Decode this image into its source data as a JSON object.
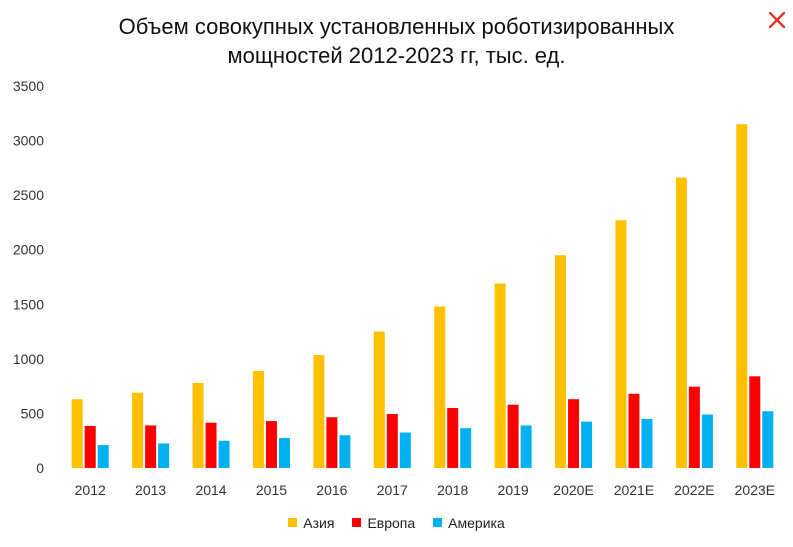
{
  "chart_data": {
    "type": "bar",
    "title_lines": [
      "Объем совокупных установленных роботизированных",
      "мощностей 2012-2023 гг, тыс. ед."
    ],
    "categories": [
      "2012",
      "2013",
      "2014",
      "2015",
      "2016",
      "2017",
      "2018",
      "2019",
      "2020E",
      "2021E",
      "2022E",
      "2023E"
    ],
    "series": [
      {
        "name": "Азия",
        "color": "#FFC000",
        "values": [
          630,
          690,
          780,
          890,
          1035,
          1250,
          1480,
          1690,
          1950,
          2270,
          2660,
          3150
        ]
      },
      {
        "name": "Европа",
        "color": "#FF0000",
        "values": [
          385,
          390,
          415,
          430,
          465,
          495,
          550,
          580,
          630,
          680,
          745,
          840
        ]
      },
      {
        "name": "Америка",
        "color": "#00B0F0",
        "values": [
          210,
          225,
          250,
          275,
          300,
          325,
          365,
          390,
          425,
          450,
          490,
          520
        ]
      }
    ],
    "yticks": [
      0,
      500,
      1000,
      1500,
      2000,
      2500,
      3000,
      3500
    ],
    "ylim": [
      0,
      3500
    ],
    "grid": false,
    "legend_position": "bottom"
  },
  "ui": {
    "close_icon": "close-icon",
    "close_color": "#E8352A"
  }
}
